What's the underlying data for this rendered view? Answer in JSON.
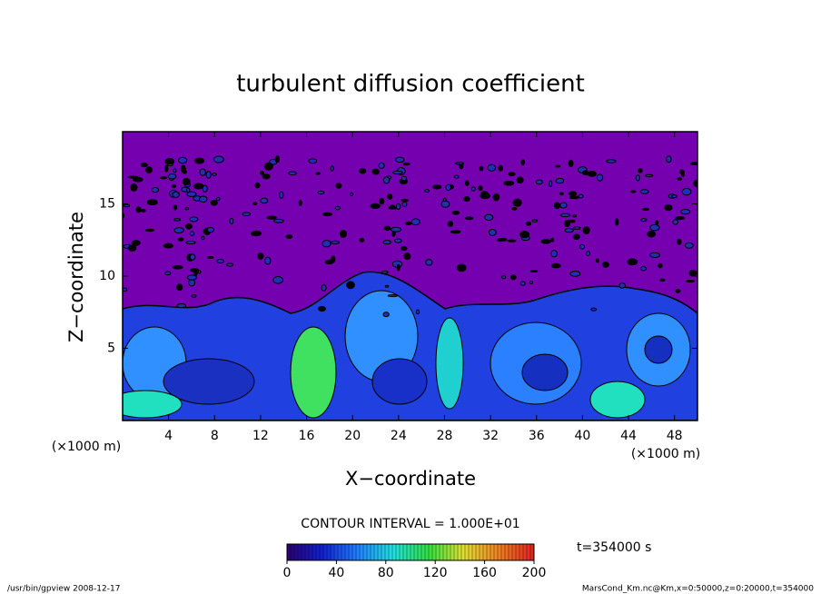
{
  "chart_data": {
    "type": "contour",
    "title": "turbulent diffusion coefficient",
    "xlabel": "X−coordinate",
    "ylabel": "Z−coordinate",
    "x_unit_left": "(×1000 m)",
    "x_unit_right": "(×1000 m)",
    "xlim": [
      0,
      50
    ],
    "xticks": [
      4,
      8,
      12,
      16,
      20,
      24,
      28,
      32,
      36,
      40,
      44,
      48
    ],
    "ylim": [
      0,
      20
    ],
    "yticks": [
      5,
      10,
      15
    ],
    "background_color": "#7400b0",
    "contour_interval": "CONTOUR INTERVAL = 1.000E+01",
    "clim": [
      0,
      200
    ],
    "cticks": [
      0,
      40,
      80,
      120,
      160,
      200
    ],
    "colormap": [
      "#2a0070",
      "#1020d0",
      "#2080ff",
      "#20e0e0",
      "#30e040",
      "#e0e030",
      "#f08020",
      "#e02020"
    ],
    "time_label": "t=354000 s",
    "footer_left": "/usr/bin/gpview   2008-12-17",
    "footer_right": "MarsCond_Km.nc@Km,x=0:50000,z=0:20000,t=354000"
  }
}
